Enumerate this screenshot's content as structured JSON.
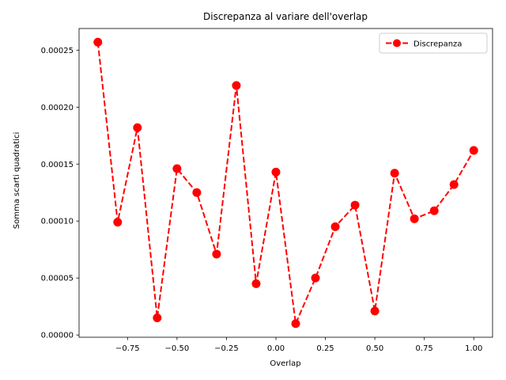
{
  "chart_data": {
    "type": "line",
    "title": "Discrepanza al variare dell'overlap",
    "xlabel": "Overlap",
    "ylabel": "Somma scarti quadratici",
    "xlim": [
      -0.995,
      1.095
    ],
    "ylim": [
      -2e-06,
      0.000269
    ],
    "x_ticks": [
      -0.75,
      -0.5,
      -0.25,
      0.0,
      0.25,
      0.5,
      0.75,
      1.0
    ],
    "x_tick_labels": [
      "−0.75",
      "−0.50",
      "−0.25",
      "0.00",
      "0.25",
      "0.50",
      "0.75",
      "1.00"
    ],
    "y_ticks": [
      0.0,
      5e-05,
      0.0001,
      0.00015,
      0.0002,
      0.00025
    ],
    "y_tick_labels": [
      "0.00000",
      "0.00005",
      "0.00010",
      "0.00015",
      "0.00020",
      "0.00025"
    ],
    "grid": false,
    "legend_position": "top-right",
    "series": [
      {
        "name": "Discrepanza",
        "color": "#ff0000",
        "line_style": "dashed",
        "marker": "circle",
        "x": [
          -0.9,
          -0.8,
          -0.7,
          -0.6,
          -0.5,
          -0.4,
          -0.3,
          -0.2,
          -0.1,
          0.0,
          0.1,
          0.2,
          0.3,
          0.4,
          0.5,
          0.6,
          0.7,
          0.8,
          0.9,
          1.0
        ],
        "y": [
          0.000257,
          9.9e-05,
          0.000182,
          1.5e-05,
          0.000146,
          0.000125,
          7.1e-05,
          0.000219,
          4.5e-05,
          0.000143,
          1e-05,
          5e-05,
          9.5e-05,
          0.000114,
          2.1e-05,
          0.000142,
          0.000102,
          0.000109,
          0.000132,
          0.000162
        ]
      }
    ]
  }
}
